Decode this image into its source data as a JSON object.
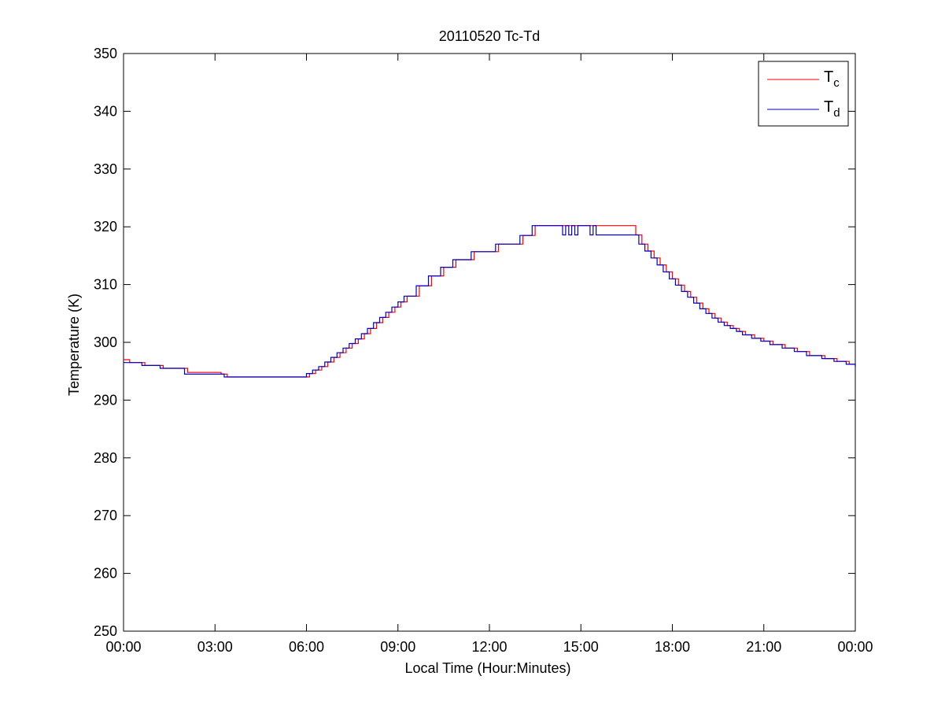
{
  "chart_data": {
    "type": "line",
    "title": "20110520 Tc-Td",
    "xlabel": "Local Time (Hour:Minutes)",
    "ylabel": "Temperature (K)",
    "xlim": [
      0,
      24
    ],
    "ylim": [
      250,
      350
    ],
    "x_tick_values": [
      0,
      3,
      6,
      9,
      12,
      15,
      18,
      21,
      24
    ],
    "x_tick_labels": [
      "00:00",
      "03:00",
      "06:00",
      "09:00",
      "12:00",
      "15:00",
      "18:00",
      "21:00",
      "00:00"
    ],
    "y_tick_values": [
      250,
      260,
      270,
      280,
      290,
      300,
      310,
      320,
      330,
      340,
      350
    ],
    "y_tick_labels": [
      "250",
      "260",
      "270",
      "280",
      "290",
      "300",
      "310",
      "320",
      "330",
      "340",
      "350"
    ],
    "grid": false,
    "legend_position": "top-right",
    "series": [
      {
        "name": "T",
        "name_subscript": "c",
        "color": "#ff0000",
        "x": [
          0.0,
          0.2,
          0.7,
          1.3,
          2.1,
          3.2,
          3.4,
          4.0,
          5.0,
          5.9,
          6.1,
          6.3,
          6.5,
          6.7,
          6.9,
          7.1,
          7.3,
          7.5,
          7.7,
          7.9,
          8.1,
          8.3,
          8.5,
          8.7,
          8.9,
          9.1,
          9.3,
          9.7,
          10.1,
          10.5,
          10.9,
          11.5,
          12.3,
          13.1,
          13.5,
          14.0,
          14.5,
          15.0,
          15.5,
          16.3,
          16.8,
          17.0,
          17.2,
          17.4,
          17.6,
          17.8,
          18.0,
          18.2,
          18.4,
          18.6,
          18.8,
          19.0,
          19.2,
          19.4,
          19.6,
          19.8,
          20.0,
          20.2,
          20.4,
          20.7,
          21.0,
          21.3,
          21.7,
          22.1,
          22.5,
          23.0,
          23.4,
          23.8,
          24.0
        ],
        "y": [
          297.0,
          296.5,
          296.0,
          295.5,
          294.8,
          294.5,
          294.0,
          294.0,
          294.0,
          294.0,
          294.6,
          295.2,
          295.8,
          296.6,
          297.4,
          298.2,
          299.0,
          299.8,
          300.6,
          301.5,
          302.4,
          303.4,
          304.3,
          305.2,
          306.1,
          307.0,
          308.0,
          309.8,
          311.5,
          313.0,
          314.3,
          315.7,
          317.0,
          318.5,
          320.2,
          320.2,
          320.2,
          320.2,
          320.2,
          320.2,
          318.6,
          317.0,
          315.8,
          314.6,
          313.4,
          312.2,
          311.0,
          309.9,
          308.8,
          307.8,
          306.8,
          305.8,
          305.0,
          304.2,
          303.5,
          302.9,
          302.4,
          301.9,
          301.3,
          300.7,
          300.2,
          299.6,
          299.0,
          298.4,
          297.7,
          297.2,
          296.7,
          296.2,
          295.8
        ]
      },
      {
        "name": "T",
        "name_subscript": "d",
        "color": "#0000cc",
        "x": [
          0.0,
          0.1,
          0.6,
          1.2,
          2.0,
          3.0,
          3.3,
          4.0,
          5.0,
          5.8,
          6.0,
          6.2,
          6.4,
          6.6,
          6.8,
          7.0,
          7.2,
          7.4,
          7.6,
          7.8,
          8.0,
          8.2,
          8.4,
          8.6,
          8.8,
          9.0,
          9.2,
          9.6,
          10.0,
          10.4,
          10.8,
          11.4,
          12.2,
          13.0,
          13.4,
          14.0,
          14.3,
          14.4,
          14.5,
          14.6,
          14.7,
          14.8,
          14.9,
          15.0,
          15.3,
          15.4,
          15.5,
          16.3,
          16.7,
          16.9,
          17.1,
          17.3,
          17.5,
          17.7,
          17.9,
          18.1,
          18.3,
          18.5,
          18.7,
          18.9,
          19.1,
          19.3,
          19.5,
          19.7,
          19.9,
          20.1,
          20.3,
          20.6,
          20.9,
          21.2,
          21.6,
          22.0,
          22.4,
          22.9,
          23.3,
          23.7,
          24.0
        ],
        "y": [
          296.5,
          296.5,
          296.0,
          295.5,
          294.5,
          294.5,
          294.0,
          294.0,
          294.0,
          294.0,
          294.6,
          295.2,
          295.8,
          296.6,
          297.4,
          298.2,
          299.0,
          299.8,
          300.6,
          301.5,
          302.4,
          303.4,
          304.3,
          305.2,
          306.1,
          307.0,
          308.0,
          309.8,
          311.5,
          313.0,
          314.3,
          315.7,
          317.0,
          318.5,
          320.2,
          320.2,
          320.2,
          318.6,
          320.2,
          318.6,
          320.2,
          318.6,
          320.2,
          320.2,
          318.6,
          320.2,
          318.6,
          318.6,
          318.6,
          317.0,
          315.8,
          314.6,
          313.4,
          312.2,
          311.0,
          309.9,
          308.8,
          307.8,
          306.8,
          305.8,
          305.0,
          304.2,
          303.5,
          302.9,
          302.4,
          301.9,
          301.3,
          300.7,
          300.2,
          299.6,
          299.0,
          298.4,
          297.7,
          297.2,
          296.7,
          296.2,
          295.8
        ]
      }
    ]
  }
}
